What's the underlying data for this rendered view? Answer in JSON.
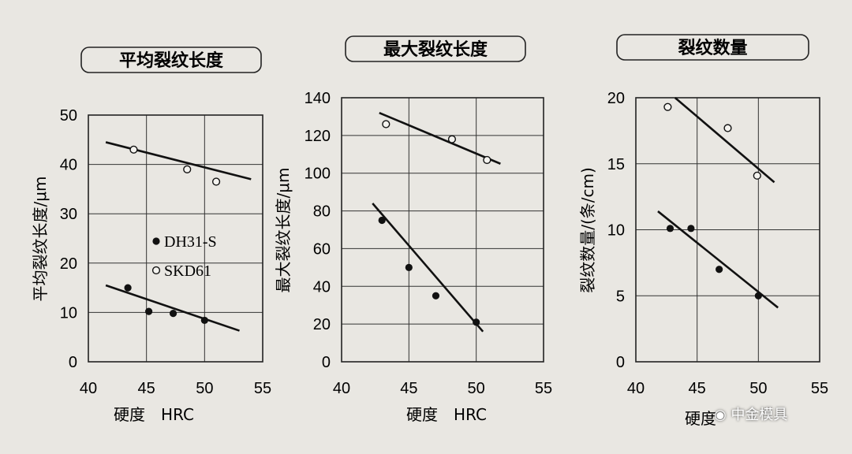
{
  "watermark": "中金模具",
  "chart_data": [
    {
      "type": "scatter",
      "title": "平均裂纹长度",
      "xlabel": "硬度　HRC",
      "ylabel": "平均裂纹长度/μm",
      "xlim": [
        40,
        55
      ],
      "ylim": [
        0,
        50
      ],
      "xticks": [
        40,
        45,
        50,
        55
      ],
      "yticks": [
        0,
        10,
        20,
        30,
        40,
        50
      ],
      "grid": true,
      "legend": {
        "position": "center-right",
        "entries": [
          {
            "marker": "●",
            "label": "DH31-S"
          },
          {
            "marker": "○",
            "label": "SKD61"
          }
        ]
      },
      "series": [
        {
          "name": "DH31-S",
          "marker": "filled",
          "points": [
            [
              43.4,
              15.0
            ],
            [
              45.2,
              10.2
            ],
            [
              47.3,
              9.8
            ],
            [
              50.0,
              8.4
            ]
          ],
          "fit": [
            [
              41.5,
              15.5
            ],
            [
              53.0,
              6.3
            ]
          ]
        },
        {
          "name": "SKD61",
          "marker": "open",
          "points": [
            [
              43.9,
              43.0
            ],
            [
              48.5,
              39.0
            ],
            [
              51.0,
              36.5
            ]
          ],
          "fit": [
            [
              41.5,
              44.5
            ],
            [
              54.0,
              37.0
            ]
          ]
        }
      ]
    },
    {
      "type": "scatter",
      "title": "最大裂纹长度",
      "xlabel": "硬度　HRC",
      "ylabel": "最大裂纹长度/μm",
      "xlim": [
        40,
        55
      ],
      "ylim": [
        0,
        140
      ],
      "xticks": [
        40,
        45,
        50,
        55
      ],
      "yticks": [
        0,
        20,
        40,
        60,
        80,
        100,
        120,
        140
      ],
      "grid": true,
      "series": [
        {
          "name": "DH31-S",
          "marker": "filled",
          "points": [
            [
              43.0,
              75.0
            ],
            [
              45.0,
              50.0
            ],
            [
              47.0,
              35.0
            ],
            [
              50.0,
              21.0
            ]
          ],
          "fit": [
            [
              42.3,
              84.0
            ],
            [
              50.5,
              16.0
            ]
          ]
        },
        {
          "name": "SKD61",
          "marker": "open",
          "points": [
            [
              43.3,
              126.0
            ],
            [
              48.2,
              118.0
            ],
            [
              50.8,
              107.0
            ]
          ],
          "fit": [
            [
              42.8,
              132.0
            ],
            [
              51.8,
              105.0
            ]
          ]
        }
      ]
    },
    {
      "type": "scatter",
      "title": "裂纹数量",
      "xlabel": "硬度",
      "ylabel": "裂纹数量/(条/cm)",
      "xlim": [
        40,
        55
      ],
      "ylim": [
        0,
        20
      ],
      "xticks": [
        40,
        45,
        50,
        55
      ],
      "yticks": [
        0,
        5,
        10,
        15,
        20
      ],
      "grid": true,
      "series": [
        {
          "name": "DH31-S",
          "marker": "filled",
          "points": [
            [
              42.8,
              10.1
            ],
            [
              44.5,
              10.1
            ],
            [
              46.8,
              7.0
            ],
            [
              50.0,
              5.0
            ]
          ],
          "fit": [
            [
              41.8,
              11.4
            ],
            [
              51.6,
              4.1
            ]
          ]
        },
        {
          "name": "SKD61",
          "marker": "open",
          "points": [
            [
              42.6,
              19.3
            ],
            [
              47.5,
              17.7
            ],
            [
              49.9,
              14.1
            ]
          ],
          "fit": [
            [
              43.2,
              20.0
            ],
            [
              51.3,
              13.6
            ]
          ]
        }
      ]
    }
  ]
}
